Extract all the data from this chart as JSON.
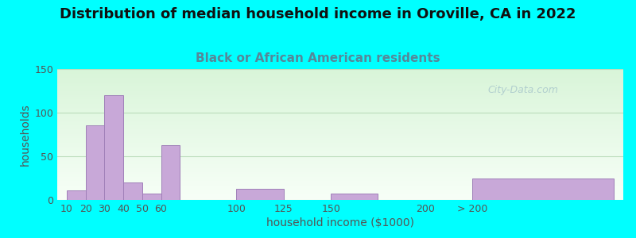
{
  "title": "Distribution of median household income in Oroville, CA in 2022",
  "subtitle": "Black or African American residents",
  "xlabel": "household income ($1000)",
  "ylabel": "households",
  "background_outer": "#00FFFF",
  "bar_color": "#c8a8d8",
  "bar_edge_color": "#a080b8",
  "watermark": "City-Data.com",
  "ylim": [
    0,
    150
  ],
  "yticks": [
    0,
    50,
    100,
    150
  ],
  "bar_lefts": [
    10,
    20,
    30,
    40,
    50,
    60,
    100,
    125,
    150,
    200,
    225
  ],
  "bar_heights": [
    11,
    85,
    120,
    20,
    7,
    63,
    13,
    0,
    7,
    0,
    25
  ],
  "bar_widths": [
    10,
    10,
    10,
    10,
    10,
    10,
    25,
    25,
    25,
    25,
    75
  ],
  "xtick_labels": [
    "10",
    "20",
    "30",
    "40",
    "50",
    "60",
    "100",
    "125",
    "150",
    "200",
    "> 200"
  ],
  "xtick_positions": [
    10,
    20,
    30,
    40,
    50,
    60,
    100,
    125,
    150,
    200,
    225
  ],
  "xlim": [
    5,
    305
  ],
  "title_fontsize": 13,
  "subtitle_fontsize": 11,
  "axis_label_fontsize": 10,
  "tick_fontsize": 9
}
